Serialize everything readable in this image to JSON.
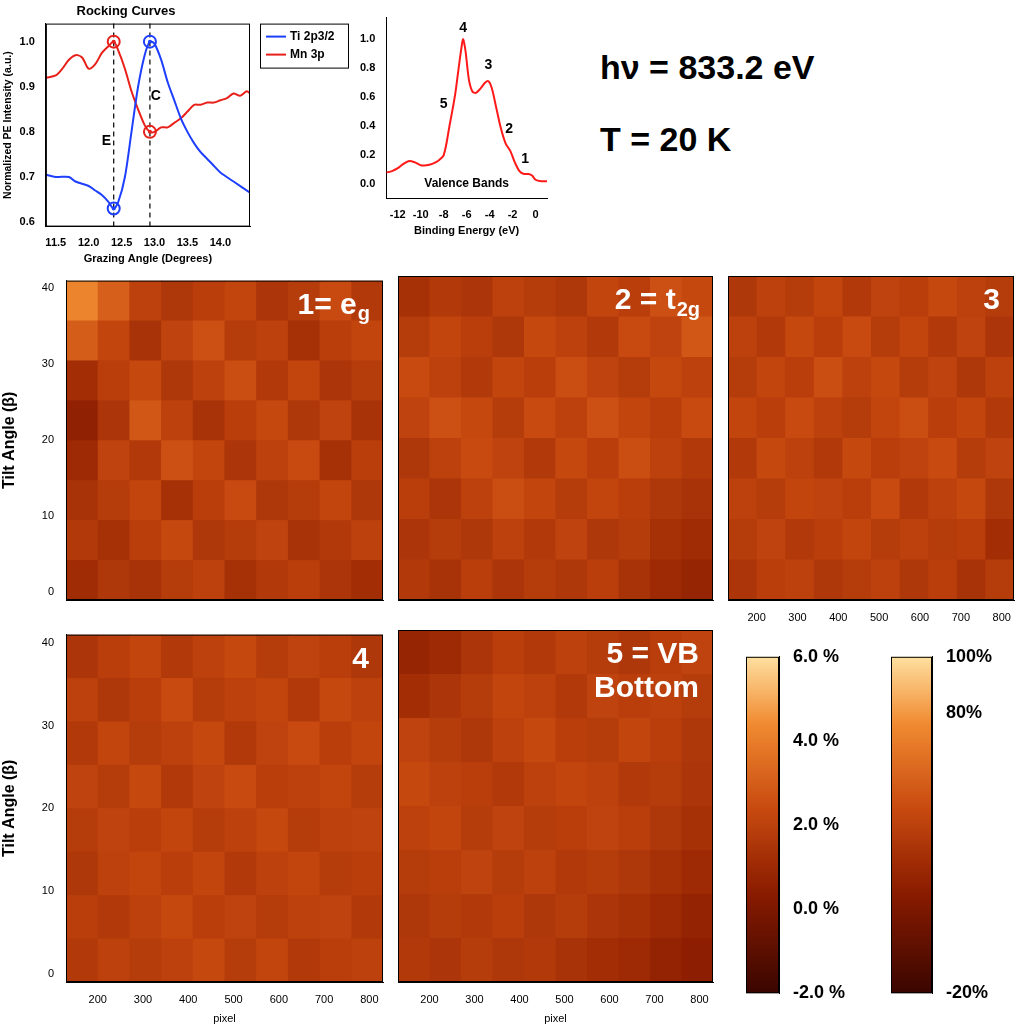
{
  "chart_data": [
    {
      "type": "line",
      "title": "Rocking Curves",
      "x_label": "Grazing Angle (Degrees)",
      "y_label": "Normalized PE Intensity (a.u.)",
      "xlim": [
        11.35,
        14.45
      ],
      "xticks": [
        11.5,
        {
          "value": 12,
          "label": "12.0"
        },
        12.5,
        {
          "value": 13,
          "label": "13.0"
        },
        13.5,
        {
          "value": 14,
          "label": "14.0"
        }
      ],
      "ylim": [
        0.59,
        1.04
      ],
      "yticks": [
        0.6,
        0.7,
        0.8,
        0.9,
        {
          "value": 1,
          "label": "1.0"
        }
      ],
      "grid": false,
      "legend": "right",
      "series": [
        {
          "name": "Ti 2p3/2",
          "color": "#1f3fff",
          "x": [
            11.35,
            11.5,
            11.7,
            11.8,
            12.0,
            12.1,
            12.2,
            12.3,
            12.38,
            12.45,
            12.55,
            12.65,
            12.75,
            12.85,
            12.93,
            13.0,
            13.1,
            13.2,
            13.3,
            13.4,
            13.5,
            13.6,
            13.7,
            13.8,
            13.9,
            14.0,
            14.2,
            14.45
          ],
          "values": [
            0.705,
            0.7,
            0.7,
            0.69,
            0.68,
            0.67,
            0.66,
            0.645,
            0.63,
            0.645,
            0.7,
            0.8,
            0.9,
            0.97,
            1.0,
            0.995,
            0.96,
            0.91,
            0.87,
            0.83,
            0.8,
            0.775,
            0.755,
            0.74,
            0.725,
            0.71,
            0.69,
            0.665
          ]
        },
        {
          "name": "Mn 3p",
          "color": "#e8201a",
          "x": [
            11.35,
            11.5,
            11.6,
            11.7,
            11.8,
            11.9,
            12.0,
            12.1,
            12.2,
            12.3,
            12.38,
            12.45,
            12.55,
            12.65,
            12.75,
            12.85,
            12.93,
            13.0,
            13.1,
            13.2,
            13.3,
            13.4,
            13.5,
            13.6,
            13.7,
            13.8,
            13.9,
            14.0,
            14.1,
            14.2,
            14.3,
            14.4,
            14.45
          ],
          "values": [
            0.92,
            0.925,
            0.94,
            0.96,
            0.97,
            0.965,
            0.94,
            0.95,
            0.975,
            0.99,
            1.0,
            0.98,
            0.94,
            0.89,
            0.85,
            0.815,
            0.8,
            0.8,
            0.81,
            0.81,
            0.82,
            0.83,
            0.845,
            0.86,
            0.86,
            0.865,
            0.865,
            0.87,
            0.875,
            0.885,
            0.88,
            0.89,
            0.885
          ]
        }
      ],
      "vlines": [
        12.38,
        12.93
      ],
      "markers": [
        {
          "x": 12.38,
          "y": 1.0,
          "color": "#e8201a"
        },
        {
          "x": 12.38,
          "y": 0.63,
          "color": "#1f3fff"
        },
        {
          "x": 12.93,
          "y": 1.0,
          "color": "#1f3fff"
        },
        {
          "x": 12.93,
          "y": 0.8,
          "color": "#e8201a"
        }
      ],
      "annotations": [
        {
          "text": "E",
          "x": 12.27,
          "y": 0.78
        },
        {
          "text": "C",
          "x": 13.02,
          "y": 0.88
        }
      ]
    },
    {
      "type": "line",
      "title": "Valence Bands",
      "x_label": "Binding Energy (eV)",
      "xlim": [
        -13,
        1
      ],
      "xticks": [
        -12,
        -10,
        -8,
        -6,
        -4,
        -2,
        0
      ],
      "ylim": [
        -0.1,
        1.15
      ],
      "yticks": [
        {
          "value": 0,
          "label": "0.0"
        },
        0.2,
        0.4,
        0.6,
        0.8,
        {
          "value": 1,
          "label": "1.0"
        }
      ],
      "grid": false,
      "series": [
        {
          "color": "#ff1a1a",
          "x": [
            -13,
            -12.5,
            -12,
            -11.5,
            -11,
            -10.5,
            -10,
            -9.5,
            -9,
            -8.5,
            -8,
            -7.5,
            -7,
            -6.7,
            -6.4,
            -6.3,
            -6.1,
            -5.8,
            -5.5,
            -5.2,
            -4.8,
            -4.4,
            -4.1,
            -3.8,
            -3.4,
            -3.0,
            -2.6,
            -2.2,
            -1.8,
            -1.4,
            -1.0,
            -0.6,
            -0.3,
            0,
            0.5,
            1
          ],
          "values": [
            0.08,
            0.09,
            0.11,
            0.14,
            0.16,
            0.15,
            0.13,
            0.13,
            0.14,
            0.16,
            0.2,
            0.4,
            0.62,
            0.8,
            0.97,
            1.0,
            0.92,
            0.72,
            0.64,
            0.63,
            0.66,
            0.7,
            0.71,
            0.66,
            0.52,
            0.38,
            0.28,
            0.23,
            0.15,
            0.09,
            0.07,
            0.07,
            0.06,
            0.03,
            0.02,
            0.02
          ]
        }
      ],
      "annotations": [
        {
          "text": "4",
          "x": -6.3,
          "y": 1.08
        },
        {
          "text": "3",
          "x": -4.1,
          "y": 0.82
        },
        {
          "text": "5",
          "x": -8.0,
          "y": 0.55
        },
        {
          "text": "2",
          "x": -2.3,
          "y": 0.38
        },
        {
          "text": "1",
          "x": -0.9,
          "y": 0.17
        }
      ]
    },
    {
      "type": "heatmap",
      "label": "1= e",
      "label_sub": "g",
      "y_label": "Tilt Angle (β)",
      "tick_labels": "y",
      "grid": false,
      "xlim": [
        130,
        830
      ],
      "xticks": [
        200,
        300,
        400,
        500,
        600,
        700,
        800
      ],
      "ylim": [
        -1,
        41
      ],
      "yticks": [
        0,
        10,
        20,
        30,
        40
      ],
      "cells": [
        [
          4.2,
          3.1,
          2.0,
          1.6,
          1.9,
          2.2,
          1.5,
          1.8,
          2.4,
          1.7
        ],
        [
          3.0,
          2.2,
          1.4,
          2.1,
          2.6,
          1.8,
          2.0,
          1.3,
          1.9,
          2.2
        ],
        [
          1.2,
          1.9,
          2.3,
          1.6,
          2.0,
          2.5,
          1.7,
          2.2,
          1.5,
          1.8
        ],
        [
          0.6,
          1.5,
          2.8,
          2.0,
          1.4,
          1.9,
          2.3,
          1.6,
          2.1,
          1.4
        ],
        [
          1.0,
          2.1,
          1.7,
          2.6,
          2.2,
          1.5,
          2.0,
          2.4,
          1.3,
          1.9
        ],
        [
          1.4,
          1.8,
          2.2,
          1.3,
          1.9,
          2.4,
          1.6,
          1.8,
          2.2,
          1.6
        ],
        [
          1.7,
          1.3,
          1.9,
          2.3,
          1.6,
          1.8,
          2.1,
          1.4,
          1.7,
          2.0
        ],
        [
          1.1,
          1.6,
          1.4,
          1.8,
          2.0,
          1.3,
          1.7,
          1.9,
          1.5,
          1.2
        ]
      ]
    },
    {
      "type": "heatmap",
      "label": "2 = t",
      "label_sub": "2g",
      "tick_labels": false,
      "grid": false,
      "xlim": [
        130,
        830
      ],
      "xticks": [
        200,
        300,
        400,
        500,
        600,
        700,
        800
      ],
      "ylim": [
        -1,
        41
      ],
      "yticks": [
        0,
        10,
        20,
        30,
        40
      ],
      "cells": [
        [
          1.3,
          1.7,
          1.5,
          2.0,
          1.8,
          1.6,
          2.2,
          1.9,
          2.6,
          2.3
        ],
        [
          1.8,
          2.2,
          1.9,
          1.6,
          2.3,
          2.0,
          1.7,
          2.4,
          2.1,
          2.8
        ],
        [
          2.4,
          2.0,
          1.7,
          2.2,
          1.9,
          2.5,
          2.1,
          1.8,
          2.3,
          2.0
        ],
        [
          2.1,
          2.6,
          2.3,
          1.8,
          2.4,
          2.0,
          2.6,
          2.2,
          1.9,
          2.4
        ],
        [
          1.6,
          2.0,
          2.4,
          2.1,
          1.7,
          2.3,
          1.9,
          2.5,
          2.0,
          1.7
        ],
        [
          1.9,
          1.5,
          2.0,
          2.5,
          2.2,
          1.8,
          2.2,
          1.9,
          1.6,
          1.4
        ],
        [
          1.5,
          1.8,
          1.6,
          2.0,
          1.7,
          2.1,
          1.6,
          1.8,
          1.3,
          1.1
        ],
        [
          1.7,
          1.4,
          1.9,
          1.5,
          1.8,
          1.6,
          1.9,
          1.4,
          1.0,
          0.8
        ]
      ]
    },
    {
      "type": "heatmap",
      "label": "3",
      "tick_labels": "x",
      "grid": false,
      "xlim": [
        130,
        830
      ],
      "xticks": [
        200,
        300,
        400,
        500,
        600,
        700,
        800
      ],
      "ylim": [
        -1,
        41
      ],
      "yticks": [
        0,
        10,
        20,
        30,
        40
      ],
      "cells": [
        [
          1.6,
          2.0,
          1.8,
          2.2,
          1.7,
          2.1,
          1.9,
          2.3,
          2.0,
          1.8
        ],
        [
          2.0,
          1.7,
          2.3,
          1.9,
          2.4,
          1.8,
          2.2,
          1.7,
          2.1,
          1.5
        ],
        [
          1.8,
          2.2,
          1.9,
          2.5,
          2.0,
          2.3,
          1.8,
          2.1,
          1.6,
          2.0
        ],
        [
          2.2,
          1.9,
          2.4,
          2.0,
          1.8,
          2.2,
          2.5,
          1.9,
          2.2,
          1.7
        ],
        [
          1.7,
          2.3,
          2.0,
          1.7,
          2.3,
          1.9,
          2.1,
          2.4,
          1.8,
          2.1
        ],
        [
          2.0,
          1.8,
          2.2,
          2.1,
          1.9,
          2.4,
          1.7,
          2.0,
          2.3,
          1.6
        ],
        [
          1.8,
          2.1,
          1.7,
          1.9,
          2.2,
          1.8,
          2.0,
          1.8,
          1.9,
          1.2
        ],
        [
          1.5,
          1.9,
          2.0,
          1.6,
          1.8,
          2.0,
          1.6,
          1.9,
          1.4,
          1.8
        ]
      ]
    },
    {
      "type": "heatmap",
      "label": "4",
      "x_label": "pixel",
      "y_label": "Tilt Angle (β)",
      "tick_labels": true,
      "grid": false,
      "xlim": [
        130,
        830
      ],
      "xticks": [
        200,
        300,
        400,
        500,
        600,
        700,
        800
      ],
      "ylim": [
        -1,
        41
      ],
      "yticks": [
        0,
        10,
        20,
        30,
        40
      ],
      "cells": [
        [
          1.5,
          1.9,
          2.2,
          1.7,
          2.0,
          2.3,
          1.8,
          2.1,
          1.9,
          1.6
        ],
        [
          2.0,
          1.6,
          1.9,
          2.4,
          1.8,
          2.0,
          2.2,
          1.7,
          2.3,
          2.0
        ],
        [
          1.7,
          2.2,
          1.8,
          2.0,
          2.3,
          1.7,
          2.1,
          2.4,
          1.9,
          2.2
        ],
        [
          2.1,
          1.8,
          2.3,
          1.7,
          2.1,
          2.4,
          1.9,
          2.0,
          2.2,
          1.8
        ],
        [
          1.8,
          2.1,
          1.9,
          2.2,
          1.8,
          2.0,
          2.3,
          1.8,
          2.0,
          2.1
        ],
        [
          1.6,
          2.0,
          2.2,
          1.9,
          2.2,
          1.7,
          2.0,
          2.2,
          1.8,
          1.9
        ],
        [
          1.9,
          1.7,
          2.0,
          2.3,
          1.9,
          2.1,
          1.8,
          2.0,
          2.1,
          1.7
        ],
        [
          1.7,
          2.0,
          1.8,
          2.0,
          2.3,
          1.8,
          2.2,
          1.7,
          1.9,
          2.0
        ]
      ]
    },
    {
      "type": "heatmap",
      "label": "5 = VB Bottom",
      "x_label": "pixel",
      "tick_labels": "x",
      "grid": false,
      "xlim": [
        130,
        830
      ],
      "xticks": [
        200,
        300,
        400,
        500,
        600,
        700,
        800
      ],
      "ylim": [
        -1,
        41
      ],
      "yticks": [
        0,
        10,
        20,
        30,
        40
      ],
      "cells": [
        [
          0.8,
          1.0,
          1.5,
          1.9,
          1.7,
          2.0,
          1.8,
          1.6,
          1.9,
          2.1
        ],
        [
          1.2,
          1.5,
          1.8,
          2.2,
          2.0,
          1.7,
          2.1,
          1.9,
          2.0,
          1.8
        ],
        [
          2.1,
          1.8,
          1.6,
          2.0,
          2.3,
          1.9,
          1.8,
          2.2,
          1.9,
          1.6
        ],
        [
          2.3,
          2.0,
          1.9,
          1.7,
          2.0,
          2.2,
          2.0,
          1.7,
          1.8,
          1.5
        ],
        [
          2.0,
          2.2,
          1.8,
          2.1,
          1.8,
          1.9,
          2.1,
          1.9,
          1.6,
          1.3
        ],
        [
          1.8,
          1.9,
          2.1,
          1.8,
          2.0,
          1.7,
          1.8,
          1.6,
          1.3,
          1.0
        ],
        [
          1.6,
          1.8,
          1.7,
          1.9,
          1.6,
          1.8,
          1.5,
          1.3,
          1.0,
          0.7
        ],
        [
          1.7,
          1.5,
          1.8,
          1.6,
          1.7,
          1.4,
          1.2,
          1.0,
          0.7,
          0.5
        ]
      ]
    }
  ],
  "colorbar": {
    "range": [
      -2,
      6
    ],
    "ticks": [
      {
        "value": 6,
        "label": "6.0 %"
      },
      {
        "value": 4,
        "label": "4.0 %"
      },
      {
        "value": 2,
        "label": "2.0 %"
      },
      {
        "value": 0,
        "label": "0.0 %"
      },
      {
        "value": -2,
        "label": "-2.0 %"
      }
    ]
  },
  "colorbar_outer": {
    "range": [
      -20,
      100
    ],
    "ticks": [
      {
        "value": 100,
        "label": "100%"
      },
      {
        "value": 80,
        "label": "80%"
      },
      {
        "value": -20,
        "label": "-20%"
      }
    ]
  },
  "texts": [
    "hν = 833.2 eV",
    "T = 20 K"
  ]
}
